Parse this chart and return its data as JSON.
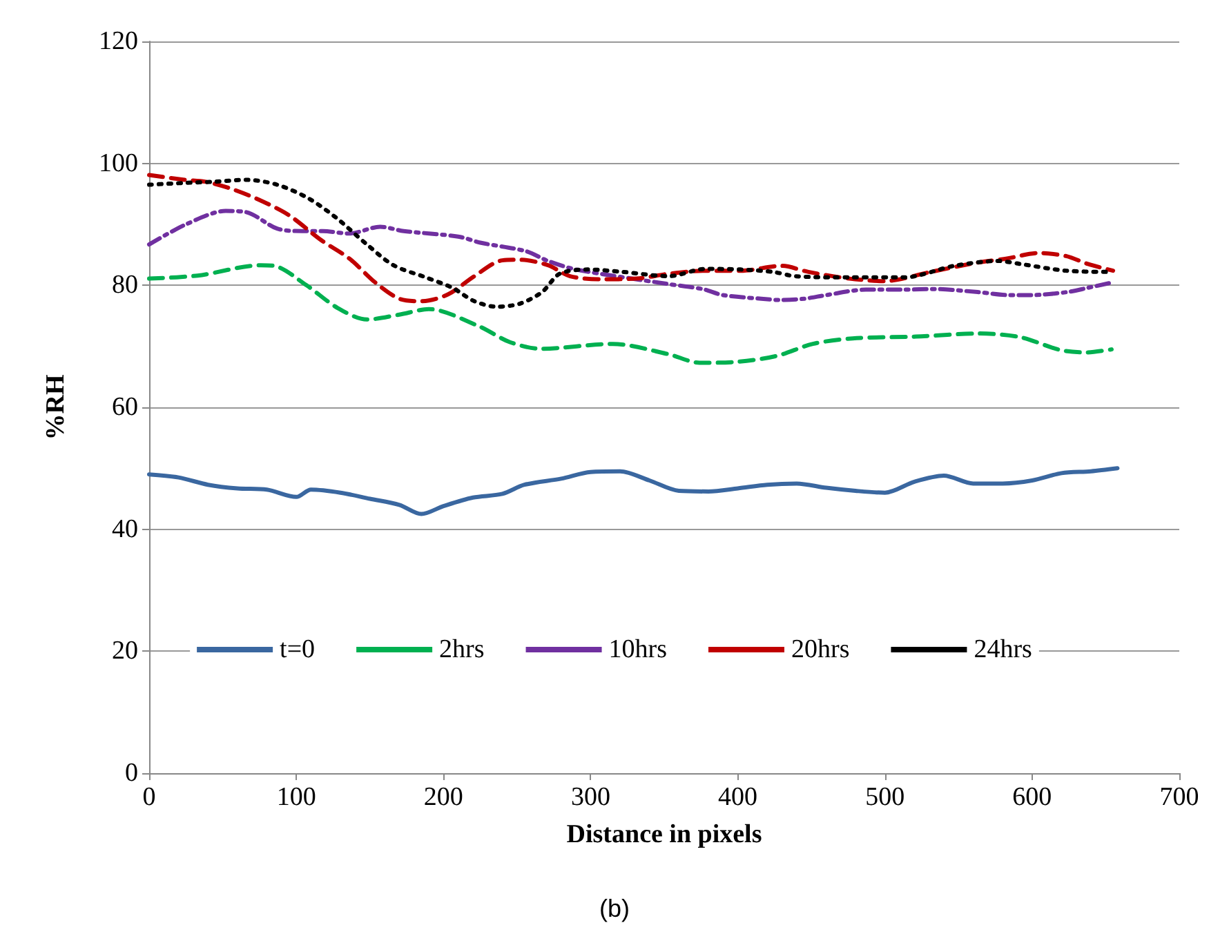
{
  "chart_data": {
    "type": "line",
    "xlabel": "Distance in pixels",
    "ylabel": "%RH",
    "xlim": [
      0,
      700
    ],
    "xticks": [
      0,
      100,
      200,
      300,
      400,
      500,
      600,
      700
    ],
    "ylim": [
      0,
      120
    ],
    "yticks": [
      0,
      20,
      40,
      60,
      80,
      100,
      120
    ],
    "grid": "y",
    "legend": "bottom",
    "marker": "none",
    "annotations": [
      "(b)"
    ],
    "series": [
      {
        "name": "t=0",
        "color": "#3a67a0",
        "line_style": "solid",
        "x": [
          0,
          20,
          40,
          60,
          80,
          100,
          110,
          130,
          150,
          170,
          185,
          200,
          220,
          240,
          255,
          280,
          300,
          320,
          340,
          360,
          380,
          400,
          420,
          440,
          460,
          480,
          500,
          520,
          540,
          560,
          580,
          600,
          620,
          640,
          658
        ],
        "values": [
          49,
          48.5,
          47.3,
          46.7,
          46.5,
          45.3,
          46.5,
          46,
          45,
          44,
          42.5,
          43.8,
          45.2,
          45.8,
          47.3,
          48.3,
          49.4,
          49.5,
          48,
          46.3,
          46.2,
          46.7,
          47.3,
          47.5,
          46.8,
          46.3,
          46,
          47.8,
          48.8,
          47.5,
          47.5,
          48,
          49.2,
          49.5,
          50
        ]
      },
      {
        "name": "2hrs",
        "color": "#00b050",
        "line_style": "dashed",
        "x": [
          0,
          33,
          76,
          85,
          107,
          128,
          148,
          170,
          190,
          224,
          245,
          266,
          315,
          353,
          374,
          396,
          426,
          451,
          478,
          521,
          564,
          592,
          619,
          637,
          654
        ],
        "values": [
          81.1,
          81.6,
          83.3,
          83.2,
          80,
          76.3,
          74.4,
          75.2,
          76.1,
          73.3,
          70.7,
          69.6,
          70.4,
          68.7,
          67.3,
          67.4,
          68.4,
          70.4,
          71.3,
          71.6,
          72.1,
          71.5,
          69.4,
          69,
          69.5
        ]
      },
      {
        "name": "10hrs",
        "color": "#7030a0",
        "line_style": "dashdot",
        "x": [
          0,
          25,
          52,
          66,
          87,
          104,
          118,
          136,
          157,
          173,
          210,
          225,
          256,
          271,
          290,
          353,
          376,
          390,
          416,
          428,
          445,
          460,
          487,
          514,
          533,
          563,
          585,
          599,
          624,
          638,
          653
        ],
        "values": [
          86.7,
          90,
          92.2,
          92,
          89.3,
          88.9,
          88.9,
          88.5,
          89.6,
          88.9,
          88,
          87,
          85.6,
          84,
          82.6,
          80.2,
          79.4,
          78.4,
          77.8,
          77.6,
          77.8,
          78.4,
          79.3,
          79.3,
          79.4,
          78.9,
          78.4,
          78.4,
          78.9,
          79.6,
          80.4
        ]
      },
      {
        "name": "20hrs",
        "color": "#c00000",
        "line_style": "dashed",
        "x": [
          0,
          24,
          38,
          55,
          74,
          95,
          117,
          136,
          154,
          170,
          185,
          203,
          221,
          240,
          252,
          271,
          286,
          307,
          331,
          353,
          378,
          402,
          430,
          448,
          476,
          500,
          531,
          562,
          583,
          604,
          623,
          638,
          655
        ],
        "values": [
          98.1,
          97.3,
          97,
          95.9,
          94.1,
          91.5,
          87.4,
          84.4,
          80.4,
          77.8,
          77.4,
          78.5,
          81.5,
          84.1,
          84.2,
          83.3,
          81.5,
          81,
          81.1,
          81.9,
          82.4,
          82.4,
          83.2,
          82.2,
          81.1,
          80.7,
          82.2,
          83.7,
          84.4,
          85.3,
          84.8,
          83.5,
          82.4
        ]
      },
      {
        "name": "24hrs",
        "color": "#000000",
        "line_style": "dotted",
        "x": [
          0,
          24,
          45,
          66,
          87,
          108,
          127,
          148,
          166,
          188,
          206,
          221,
          236,
          252,
          267,
          279,
          298,
          322,
          353,
          378,
          402,
          424,
          439,
          476,
          513,
          547,
          577,
          592,
          623,
          653
        ],
        "values": [
          96.5,
          96.8,
          97,
          97.3,
          96.5,
          94.3,
          91.1,
          86.7,
          83.3,
          81.3,
          79.6,
          77.4,
          76.5,
          77,
          78.9,
          81.9,
          82.6,
          82.2,
          81.5,
          82.7,
          82.6,
          82.2,
          81.5,
          81.3,
          81.3,
          83.2,
          84,
          83.5,
          82.4,
          82.2
        ]
      }
    ]
  }
}
